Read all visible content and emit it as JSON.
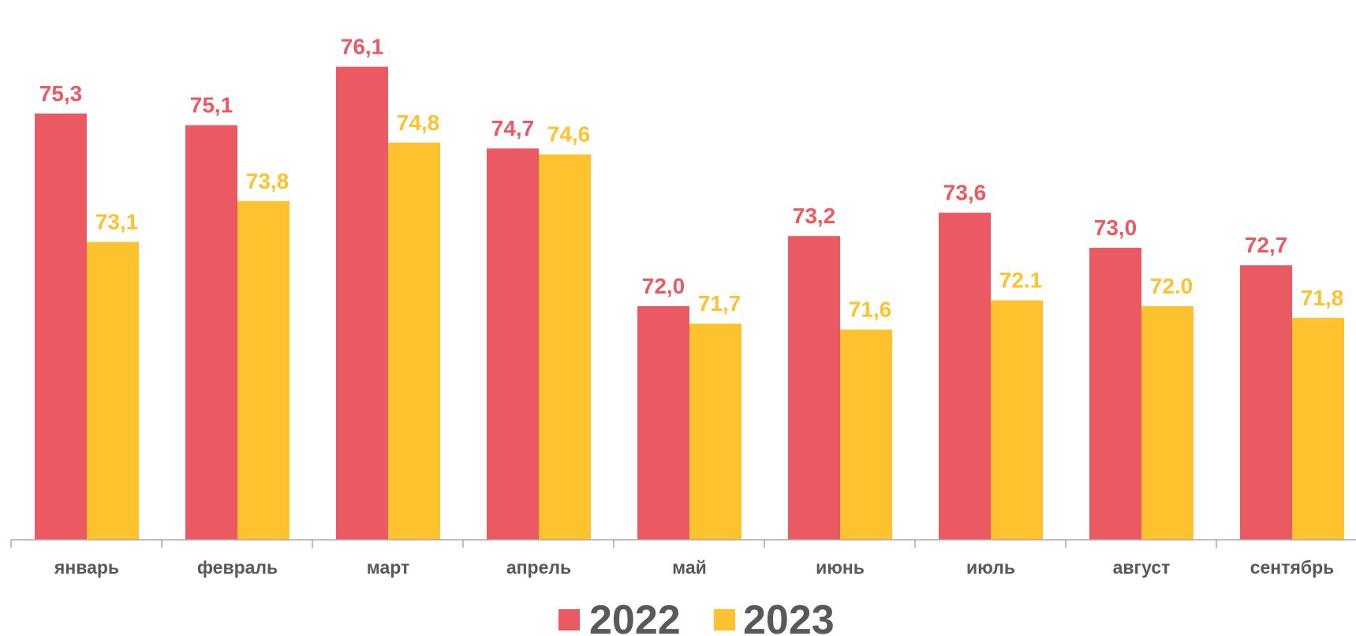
{
  "chart_data": {
    "type": "bar",
    "categories": [
      "январь",
      "февраль",
      "март",
      "апрель",
      "май",
      "июнь",
      "июль",
      "август",
      "сентябрь"
    ],
    "series": [
      {
        "name": "2022",
        "color": "#eb5a63",
        "values": [
          75.3,
          75.1,
          76.1,
          74.7,
          72.0,
          73.2,
          73.6,
          73.0,
          72.7
        ],
        "labels": [
          "75,3",
          "75,1",
          "76,1",
          "74,7",
          "72,0",
          "73,2",
          "73,6",
          "73,0",
          "72,7"
        ]
      },
      {
        "name": "2023",
        "color": "#fec22e",
        "values": [
          73.1,
          73.8,
          74.8,
          74.6,
          71.7,
          71.6,
          72.1,
          72.0,
          71.8
        ],
        "labels": [
          "73,1",
          "73,8",
          "74,8",
          "74,6",
          "71,7",
          "71,6",
          "72.1",
          "72.0",
          "71,8"
        ]
      }
    ],
    "ylim": [
      68.0,
      77.0
    ],
    "grid": false,
    "legend_position": "bottom-center"
  }
}
